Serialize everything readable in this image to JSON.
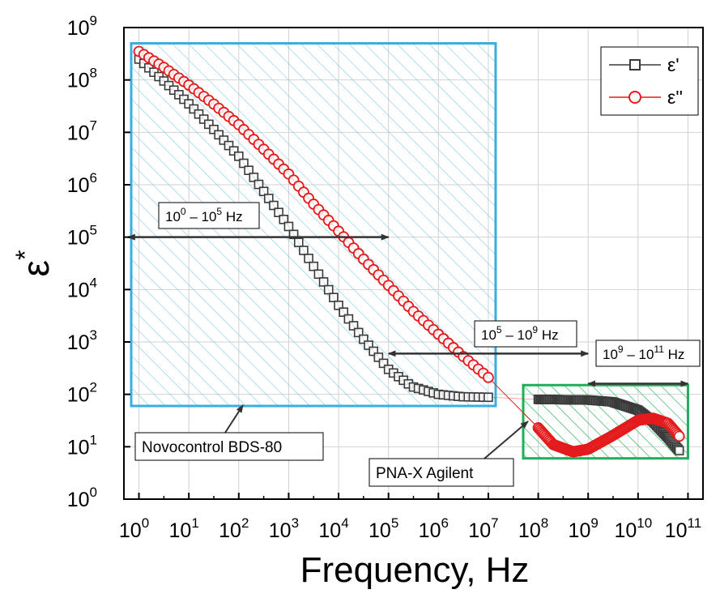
{
  "chart_data": {
    "type": "scatter",
    "xlabel": "Frequency, Hz",
    "ylabel": "ε",
    "ylabel_superscript": "*",
    "x_scale": "log",
    "y_scale": "log",
    "xlim": [
      0.5,
      200000000000
    ],
    "ylim": [
      1,
      1000000000
    ],
    "grid": true,
    "legend_placement": "top-right",
    "x_ticks": [
      {
        "base": "10",
        "exp": "0",
        "value": 1
      },
      {
        "base": "10",
        "exp": "1",
        "value": 10
      },
      {
        "base": "10",
        "exp": "2",
        "value": 100
      },
      {
        "base": "10",
        "exp": "3",
        "value": 1000
      },
      {
        "base": "10",
        "exp": "4",
        "value": 10000
      },
      {
        "base": "10",
        "exp": "5",
        "value": 100000
      },
      {
        "base": "10",
        "exp": "6",
        "value": 1000000
      },
      {
        "base": "10",
        "exp": "7",
        "value": 10000000
      },
      {
        "base": "10",
        "exp": "8",
        "value": 100000000
      },
      {
        "base": "10",
        "exp": "9",
        "value": 1000000000
      },
      {
        "base": "10",
        "exp": "10",
        "value": 10000000000
      },
      {
        "base": "10",
        "exp": "11",
        "value": 100000000000
      }
    ],
    "y_ticks": [
      {
        "base": "10",
        "exp": "0",
        "value": 1
      },
      {
        "base": "10",
        "exp": "1",
        "value": 10
      },
      {
        "base": "10",
        "exp": "2",
        "value": 100
      },
      {
        "base": "10",
        "exp": "3",
        "value": 1000
      },
      {
        "base": "10",
        "exp": "4",
        "value": 10000
      },
      {
        "base": "10",
        "exp": "5",
        "value": 100000
      },
      {
        "base": "10",
        "exp": "6",
        "value": 1000000
      },
      {
        "base": "10",
        "exp": "7",
        "value": 10000000
      },
      {
        "base": "10",
        "exp": "8",
        "value": 100000000
      },
      {
        "base": "10",
        "exp": "9",
        "value": 1000000000
      }
    ],
    "series": [
      {
        "name": "ε'",
        "color": "#3a3a3a",
        "marker": "square",
        "points": [
          [
            1,
            250000000
          ],
          [
            3,
            100000000
          ],
          [
            10,
            35000000
          ],
          [
            30,
            12000000
          ],
          [
            100,
            3500000
          ],
          [
            300,
            800000
          ],
          [
            1000,
            160000
          ],
          [
            3000,
            30000
          ],
          [
            10000,
            5000
          ],
          [
            30000,
            1200
          ],
          [
            100000,
            300
          ],
          [
            300000,
            140
          ],
          [
            1000000,
            100
          ],
          [
            3000000,
            90
          ],
          [
            10000000,
            88
          ],
          [
            100000000,
            80
          ],
          [
            1000000000,
            78
          ],
          [
            3000000000,
            72
          ],
          [
            10000000000,
            50
          ],
          [
            20000000000,
            30
          ],
          [
            40000000000,
            15
          ],
          [
            70000000000,
            8
          ]
        ]
      },
      {
        "name": "ε''",
        "color": "#e41a1c",
        "marker": "circle",
        "points": [
          [
            1,
            350000000
          ],
          [
            3,
            180000000
          ],
          [
            10,
            80000000
          ],
          [
            30,
            36000000
          ],
          [
            100,
            14000000
          ],
          [
            300,
            5000000
          ],
          [
            1000,
            1600000
          ],
          [
            3000,
            450000
          ],
          [
            10000,
            130000
          ],
          [
            30000,
            40000
          ],
          [
            100000,
            12000
          ],
          [
            300000,
            4000
          ],
          [
            1000000,
            1400
          ],
          [
            3000000,
            550
          ],
          [
            10000000,
            210
          ],
          [
            100000000,
            23
          ],
          [
            200000000,
            11
          ],
          [
            500000000,
            8
          ],
          [
            1000000000,
            9
          ],
          [
            3000000000,
            16
          ],
          [
            10000000000,
            32
          ],
          [
            20000000000,
            35
          ],
          [
            40000000000,
            28
          ],
          [
            60000000000,
            18
          ],
          [
            70000000000,
            15
          ]
        ]
      }
    ],
    "regions": [
      {
        "label": "Novocontrol BDS-80",
        "color": "#3aaee0",
        "hatch": "#7fc8ea",
        "x0": 0.7,
        "x1": 14000000,
        "y0": 60,
        "y1": 500000000
      },
      {
        "label": "PNA-X Agilent",
        "color": "#1fae5a",
        "hatch": "#35b860",
        "x0": 50000000,
        "x1": 100000000000,
        "y0": 6,
        "y1": 150
      }
    ],
    "ranges": [
      {
        "label": "10",
        "exp0": "0",
        "mid": " – 10",
        "exp1": "5",
        "unit": " Hz",
        "x0": 0.6,
        "x1": 100000,
        "y": 100000
      },
      {
        "label": "10",
        "exp0": "5",
        "mid": " – 10",
        "exp1": "9",
        "unit": " Hz",
        "x0": 100000,
        "x1": 1000000000,
        "y": 600
      },
      {
        "label": "10",
        "exp0": "9",
        "mid": " – 10",
        "exp1": "11",
        "unit": " Hz",
        "x0": 1000000000,
        "x1": 100000000000,
        "y": 160
      }
    ]
  }
}
